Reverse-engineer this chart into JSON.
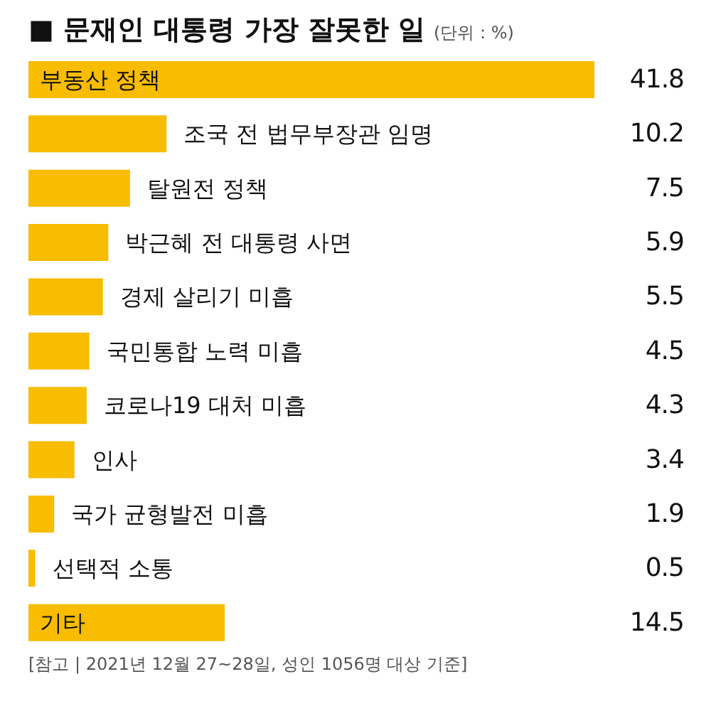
{
  "chart_data": {
    "type": "bar",
    "orientation": "horizontal",
    "title": "■ 문재인 대통령 가장 잘못한 일",
    "subtitle": "(단위 : %)",
    "categories": [
      "부동산 정책",
      "조국 전 법무부장관 임명",
      "탈원전 정책",
      "박근혜 전 대통령 사면",
      "경제 살리기 미흡",
      "국민통합 노력 미흡",
      "코로나19 대처 미흡",
      "인사",
      "국가 균형발전 미흡",
      "선택적 소통",
      "기타"
    ],
    "values": [
      41.8,
      10.2,
      7.5,
      5.9,
      5.5,
      4.5,
      4.3,
      3.4,
      1.9,
      0.5,
      14.5
    ],
    "color": "#f8bc00",
    "data_labels": true,
    "tick_labels": "y",
    "annotations": [
      "[참고 | 2021년 12월 27~28일, 성인 1056명 대상 기준]"
    ]
  }
}
